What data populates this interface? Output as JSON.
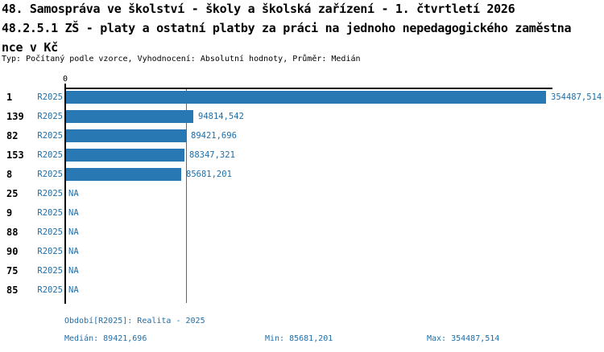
{
  "header": {
    "title_lines": [
      "48. Samospráva ve školství - školy a školská zařízení - 1. čtvrtletí 2026",
      "48.2.5.1 ZŠ - platy a ostatní platby za práci na jednoho nepedagogického zaměstna",
      "nce v Kč"
    ],
    "meta": "Typ: Počítaný podle vzorce, Vyhodnocení: Absolutní hodnoty, Průměr: Medián"
  },
  "chart_data": {
    "type": "bar",
    "orientation": "horizontal",
    "title": "48. Samospráva ve školství - školy a školská zařízení - 1. čtvrtletí 2026",
    "subtitle": "48.2.5.1 ZŠ - platy a ostatní platby za práci na jednoho nepedagogického zaměstnance v Kč",
    "axis_zero_label": "0",
    "xlim": [
      0,
      354487.514
    ],
    "grid": false,
    "median_value": 89421.696,
    "na_label": "NA",
    "categories": [
      "1",
      "139",
      "82",
      "153",
      "8",
      "25",
      "9",
      "88",
      "90",
      "75",
      "85"
    ],
    "series": [
      {
        "name": "R2025",
        "values": [
          354487.514,
          94814.542,
          89421.696,
          88347.321,
          85681.201,
          null,
          null,
          null,
          null,
          null,
          null
        ]
      }
    ],
    "value_labels": [
      "354487,514",
      "94814,542",
      "89421,696",
      "88347,321",
      "85681,201",
      "NA",
      "NA",
      "NA",
      "NA",
      "NA",
      "NA"
    ]
  },
  "footer": {
    "period": "Období[R2025]: Realita - 2025",
    "median": "Medián: 89421,696",
    "min": "Min: 85681,201",
    "max": "Max: 354487,514"
  },
  "colors": {
    "bar": "#2878b4",
    "blue_text": "#1e6ea8",
    "axis": "#000000",
    "background": "#ffffff"
  }
}
